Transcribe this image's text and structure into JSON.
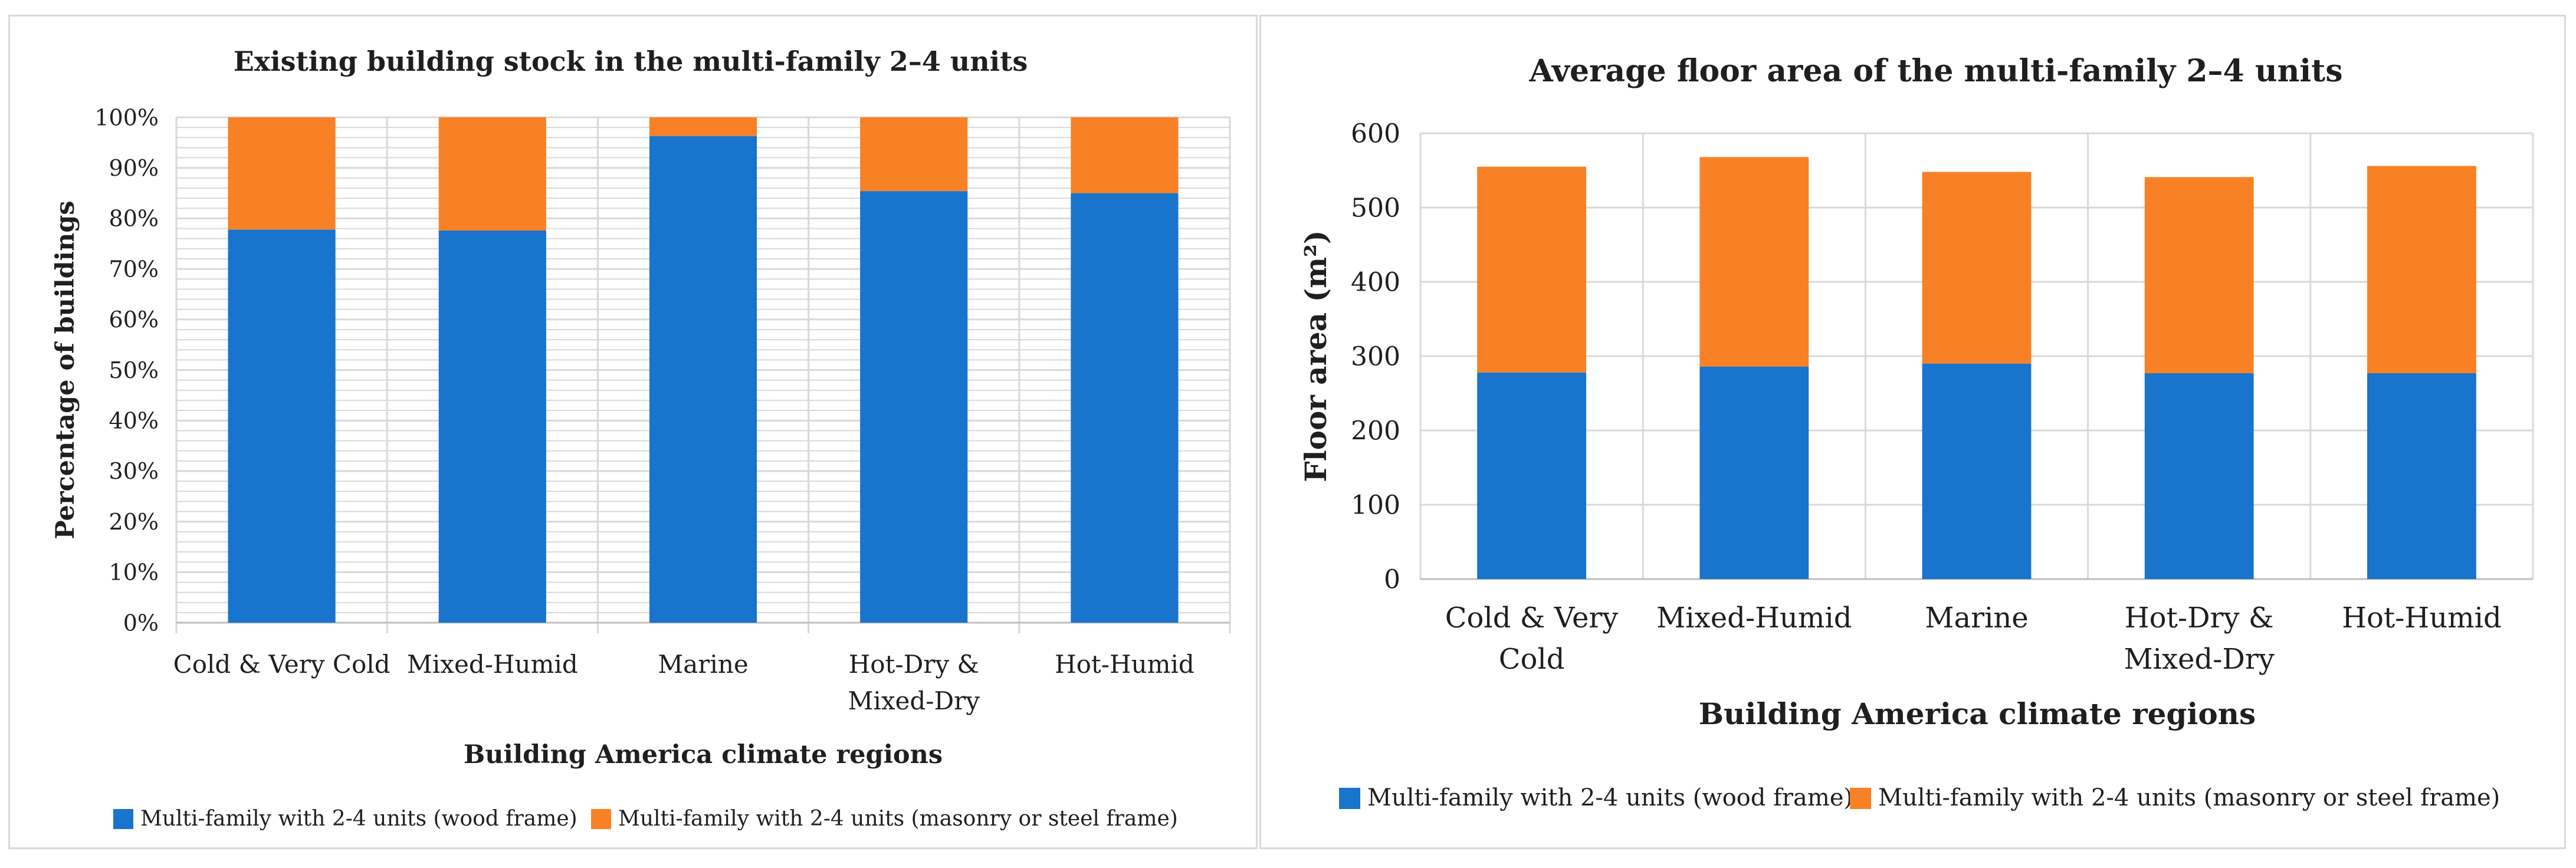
{
  "colors": {
    "wood": "#1874cd",
    "masonry": "#f98125",
    "grid": "#d9d9d9",
    "axis": "#bfbfbf"
  },
  "chart_data": [
    {
      "type": "bar",
      "stacked": true,
      "title": "Existing building stock in the multi-family 2–4 units",
      "xlabel": "Building America climate regions",
      "ylabel": "Percentage of buildings",
      "ylim": [
        0,
        100
      ],
      "yticks": [
        "0%",
        "10%",
        "20%",
        "30%",
        "40%",
        "50%",
        "60%",
        "70%",
        "80%",
        "90%",
        "100%"
      ],
      "categories": [
        [
          "Cold & Very Cold"
        ],
        [
          "Mixed-Humid"
        ],
        [
          "Marine"
        ],
        [
          "Hot-Dry &",
          "Mixed-Dry"
        ],
        [
          "Hot-Humid"
        ]
      ],
      "series": [
        {
          "name": "Multi-family with 2-4 units (wood frame)",
          "values": [
            77.8,
            77.6,
            96.3,
            85.4,
            85.0
          ]
        },
        {
          "name": "Multi-family with 2-4 units (masonry or steel frame)",
          "values": [
            22.2,
            22.4,
            3.7,
            14.6,
            15.0
          ]
        }
      ],
      "legend": "bottom"
    },
    {
      "type": "bar",
      "stacked": true,
      "title": "Average floor area of the multi-family 2–4 units",
      "xlabel": "Building America climate regions",
      "ylabel": "Floor area (m²)",
      "ylim": [
        0,
        600
      ],
      "yticks": [
        "0",
        "100",
        "200",
        "300",
        "400",
        "500",
        "600"
      ],
      "categories": [
        [
          "Cold & Very",
          "Cold"
        ],
        [
          "Mixed-Humid"
        ],
        [
          "Marine"
        ],
        [
          "Hot-Dry &",
          "Mixed-Dry"
        ],
        [
          "Hot-Humid"
        ]
      ],
      "series": [
        {
          "name": "Multi-family with 2-4 units (wood frame)",
          "values": [
            278,
            286,
            290,
            277,
            277
          ]
        },
        {
          "name": "Multi-family with 2-4 units (masonry or steel frame)",
          "values": [
            277,
            282,
            258,
            264,
            279
          ]
        }
      ],
      "legend": "bottom"
    }
  ]
}
